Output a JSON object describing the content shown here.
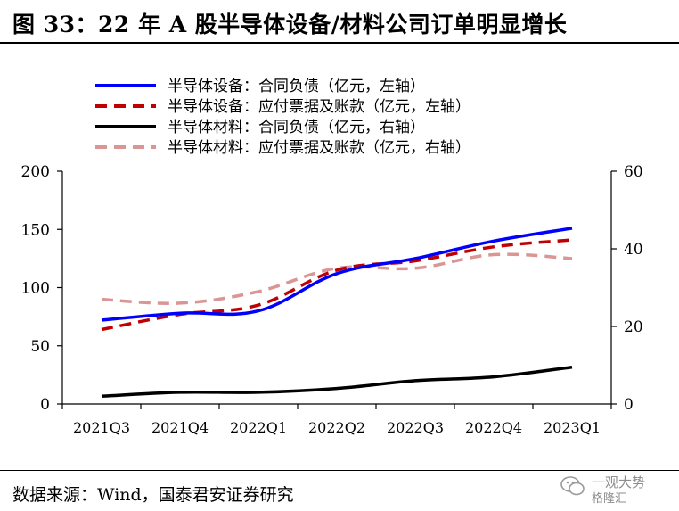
{
  "title": "图 33：22 年 A 股半导体设备/材料公司订单明显增长",
  "source": "数据来源：Wind，国泰君安证券研究",
  "watermark": {
    "line1": "一观大势",
    "line2": "格隆汇"
  },
  "chart_data": {
    "type": "line",
    "categories": [
      "2021Q3",
      "2021Q4",
      "2022Q1",
      "2022Q2",
      "2022Q3",
      "2022Q4",
      "2023Q1"
    ],
    "y_left": {
      "min": 0,
      "max": 200,
      "ticks": [
        0,
        50,
        100,
        150,
        200
      ]
    },
    "y_right": {
      "min": 0,
      "max": 60,
      "ticks": [
        0,
        20,
        40,
        60
      ]
    },
    "legend_position": "top-center",
    "grid": false,
    "series": [
      {
        "name": "半导体设备：合同负债（亿元，左轴）",
        "axis": "left",
        "color": "#0000ff",
        "dash": "solid",
        "values": [
          72,
          78,
          80,
          112,
          125,
          140,
          151
        ]
      },
      {
        "name": "半导体设备：应付票据及账款（亿元，左轴）",
        "axis": "left",
        "color": "#c00000",
        "dash": "dashed",
        "values": [
          64,
          77,
          85,
          115,
          123,
          135,
          141
        ]
      },
      {
        "name": "半导体材料：合同负债（亿元，右轴）",
        "axis": "right",
        "color": "#000000",
        "dash": "solid",
        "values": [
          2.0,
          3.0,
          3.0,
          4.0,
          6.0,
          7.0,
          9.5
        ]
      },
      {
        "name": "半导体材料：应付票据及账款（亿元，右轴）",
        "axis": "right",
        "color": "#d99694",
        "dash": "dashed",
        "values": [
          27,
          26,
          29,
          35,
          35,
          38.5,
          37.5
        ]
      }
    ]
  }
}
